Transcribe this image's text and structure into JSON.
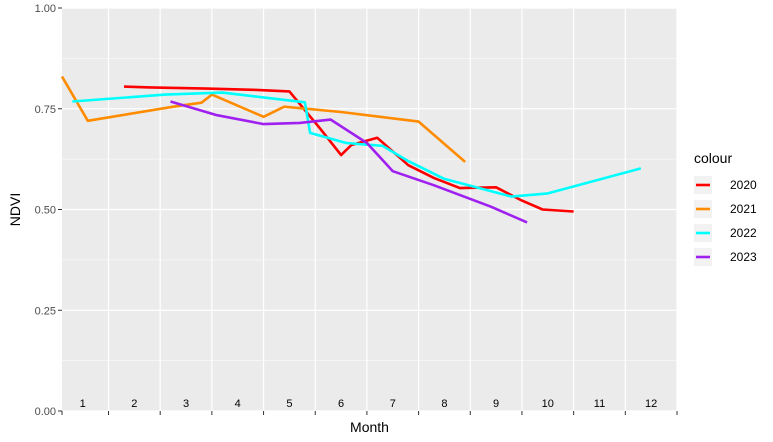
{
  "chart_data": {
    "type": "line",
    "title": "",
    "xlabel": "Month",
    "ylabel": "NDVI",
    "ylim": [
      0,
      1
    ],
    "xlim": [
      0.6,
      12.5
    ],
    "y_ticks": [
      "0.00",
      "0.25",
      "0.50",
      "0.75",
      "1.00"
    ],
    "month_labels": [
      "1",
      "2",
      "3",
      "4",
      "5",
      "6",
      "7",
      "8",
      "9",
      "10",
      "11",
      "12"
    ],
    "grid": true,
    "legend": {
      "title": "colour",
      "position": "right"
    },
    "series": [
      {
        "name": "2020",
        "color": "#ff0000",
        "points": [
          [
            1.8,
            0.805
          ],
          [
            2.3,
            0.803
          ],
          [
            3.4,
            0.8
          ],
          [
            4.3,
            0.797
          ],
          [
            5.0,
            0.793
          ],
          [
            5.6,
            0.7
          ],
          [
            6.0,
            0.635
          ],
          [
            6.2,
            0.66
          ],
          [
            6.7,
            0.678
          ],
          [
            7.3,
            0.61
          ],
          [
            7.8,
            0.578
          ],
          [
            8.3,
            0.553
          ],
          [
            9.0,
            0.555
          ],
          [
            9.5,
            0.522
          ],
          [
            9.9,
            0.5
          ],
          [
            10.5,
            0.495
          ]
        ]
      },
      {
        "name": "2021",
        "color": "#ff8c00",
        "points": [
          [
            0.6,
            0.83
          ],
          [
            1.1,
            0.72
          ],
          [
            2.8,
            0.756
          ],
          [
            3.3,
            0.765
          ],
          [
            3.5,
            0.785
          ],
          [
            4.5,
            0.73
          ],
          [
            4.9,
            0.755
          ],
          [
            6.0,
            0.742
          ],
          [
            7.5,
            0.718
          ],
          [
            8.4,
            0.618
          ]
        ]
      },
      {
        "name": "2022",
        "color": "#00ffff",
        "points": [
          [
            0.8,
            0.768
          ],
          [
            2.6,
            0.785
          ],
          [
            3.7,
            0.79
          ],
          [
            5.3,
            0.766
          ],
          [
            5.4,
            0.69
          ],
          [
            6.1,
            0.665
          ],
          [
            6.8,
            0.658
          ],
          [
            7.3,
            0.62
          ],
          [
            8.0,
            0.576
          ],
          [
            9.3,
            0.532
          ],
          [
            10.0,
            0.54
          ],
          [
            11.8,
            0.602
          ]
        ]
      },
      {
        "name": "2023",
        "color": "#a020f0",
        "points": [
          [
            2.7,
            0.768
          ],
          [
            3.6,
            0.734
          ],
          [
            4.5,
            0.712
          ],
          [
            5.2,
            0.715
          ],
          [
            5.8,
            0.723
          ],
          [
            6.5,
            0.665
          ],
          [
            7.0,
            0.595
          ],
          [
            7.8,
            0.56
          ],
          [
            8.9,
            0.507
          ],
          [
            9.6,
            0.468
          ]
        ]
      }
    ]
  }
}
